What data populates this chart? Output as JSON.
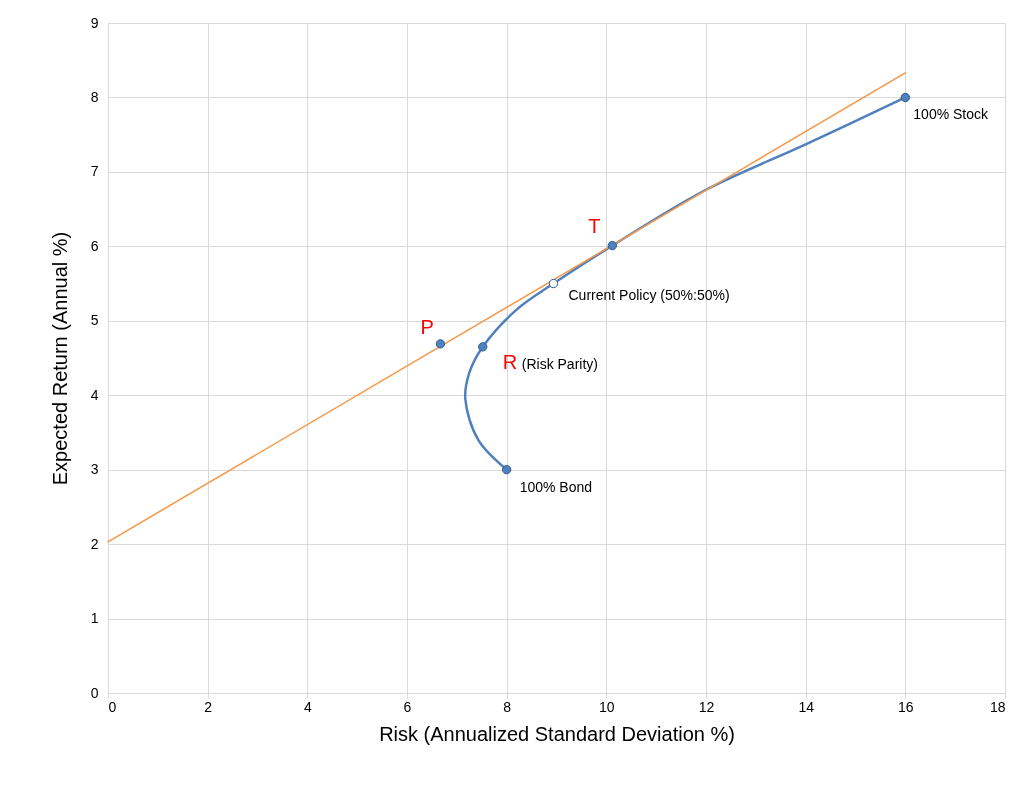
{
  "chart_data": {
    "type": "line",
    "xlabel": "Risk  (Annualized Standard Deviation %)",
    "ylabel": "Expected Return (Annual %)",
    "xlim": [
      0,
      18
    ],
    "xticks": [
      0,
      2,
      4,
      6,
      8,
      10,
      12,
      14,
      16,
      18
    ],
    "ylim": [
      0,
      9
    ],
    "yticks": [
      0,
      1,
      2,
      3,
      4,
      5,
      6,
      7,
      8,
      9
    ],
    "grid": true,
    "series": [
      {
        "color": "#4f81bd",
        "x": [
          8,
          7.43,
          7.17,
          7.25,
          7.52,
          8.2,
          8.94,
          10.12,
          12,
          14,
          16
        ],
        "values": [
          3,
          3.4,
          3.95,
          4.3,
          4.65,
          5.15,
          5.5,
          6.01,
          6.76,
          7.37,
          8
        ]
      },
      {
        "color": "#f79646",
        "x": [
          0,
          16
        ],
        "values": [
          2.03,
          8.33
        ]
      },
      {
        "type": "scatter",
        "color": "#4f81bd",
        "x": [
          6.67,
          7.52,
          10.12,
          8,
          16
        ],
        "values": [
          4.69,
          4.65,
          6.01,
          3,
          8
        ]
      },
      {
        "type": "scatter",
        "color": "#ffffff",
        "x": [
          8.94
        ],
        "values": [
          5.5
        ]
      }
    ],
    "annotations": [
      {
        "text": "P",
        "x": 6.67,
        "y": 4.69
      },
      {
        "text": "R",
        "x": 7.52,
        "y": 4.65
      },
      {
        "text": "(Risk Parity)",
        "x": 7.52,
        "y": 4.65
      },
      {
        "text": "T",
        "x": 10.12,
        "y": 6.01
      },
      {
        "text": "Current Policy (50%:50%)",
        "x": 8.94,
        "y": 5.5
      },
      {
        "text": "100% Bond",
        "x": 8,
        "y": 3
      },
      {
        "text": "100% Stock",
        "x": 16,
        "y": 8
      }
    ]
  }
}
